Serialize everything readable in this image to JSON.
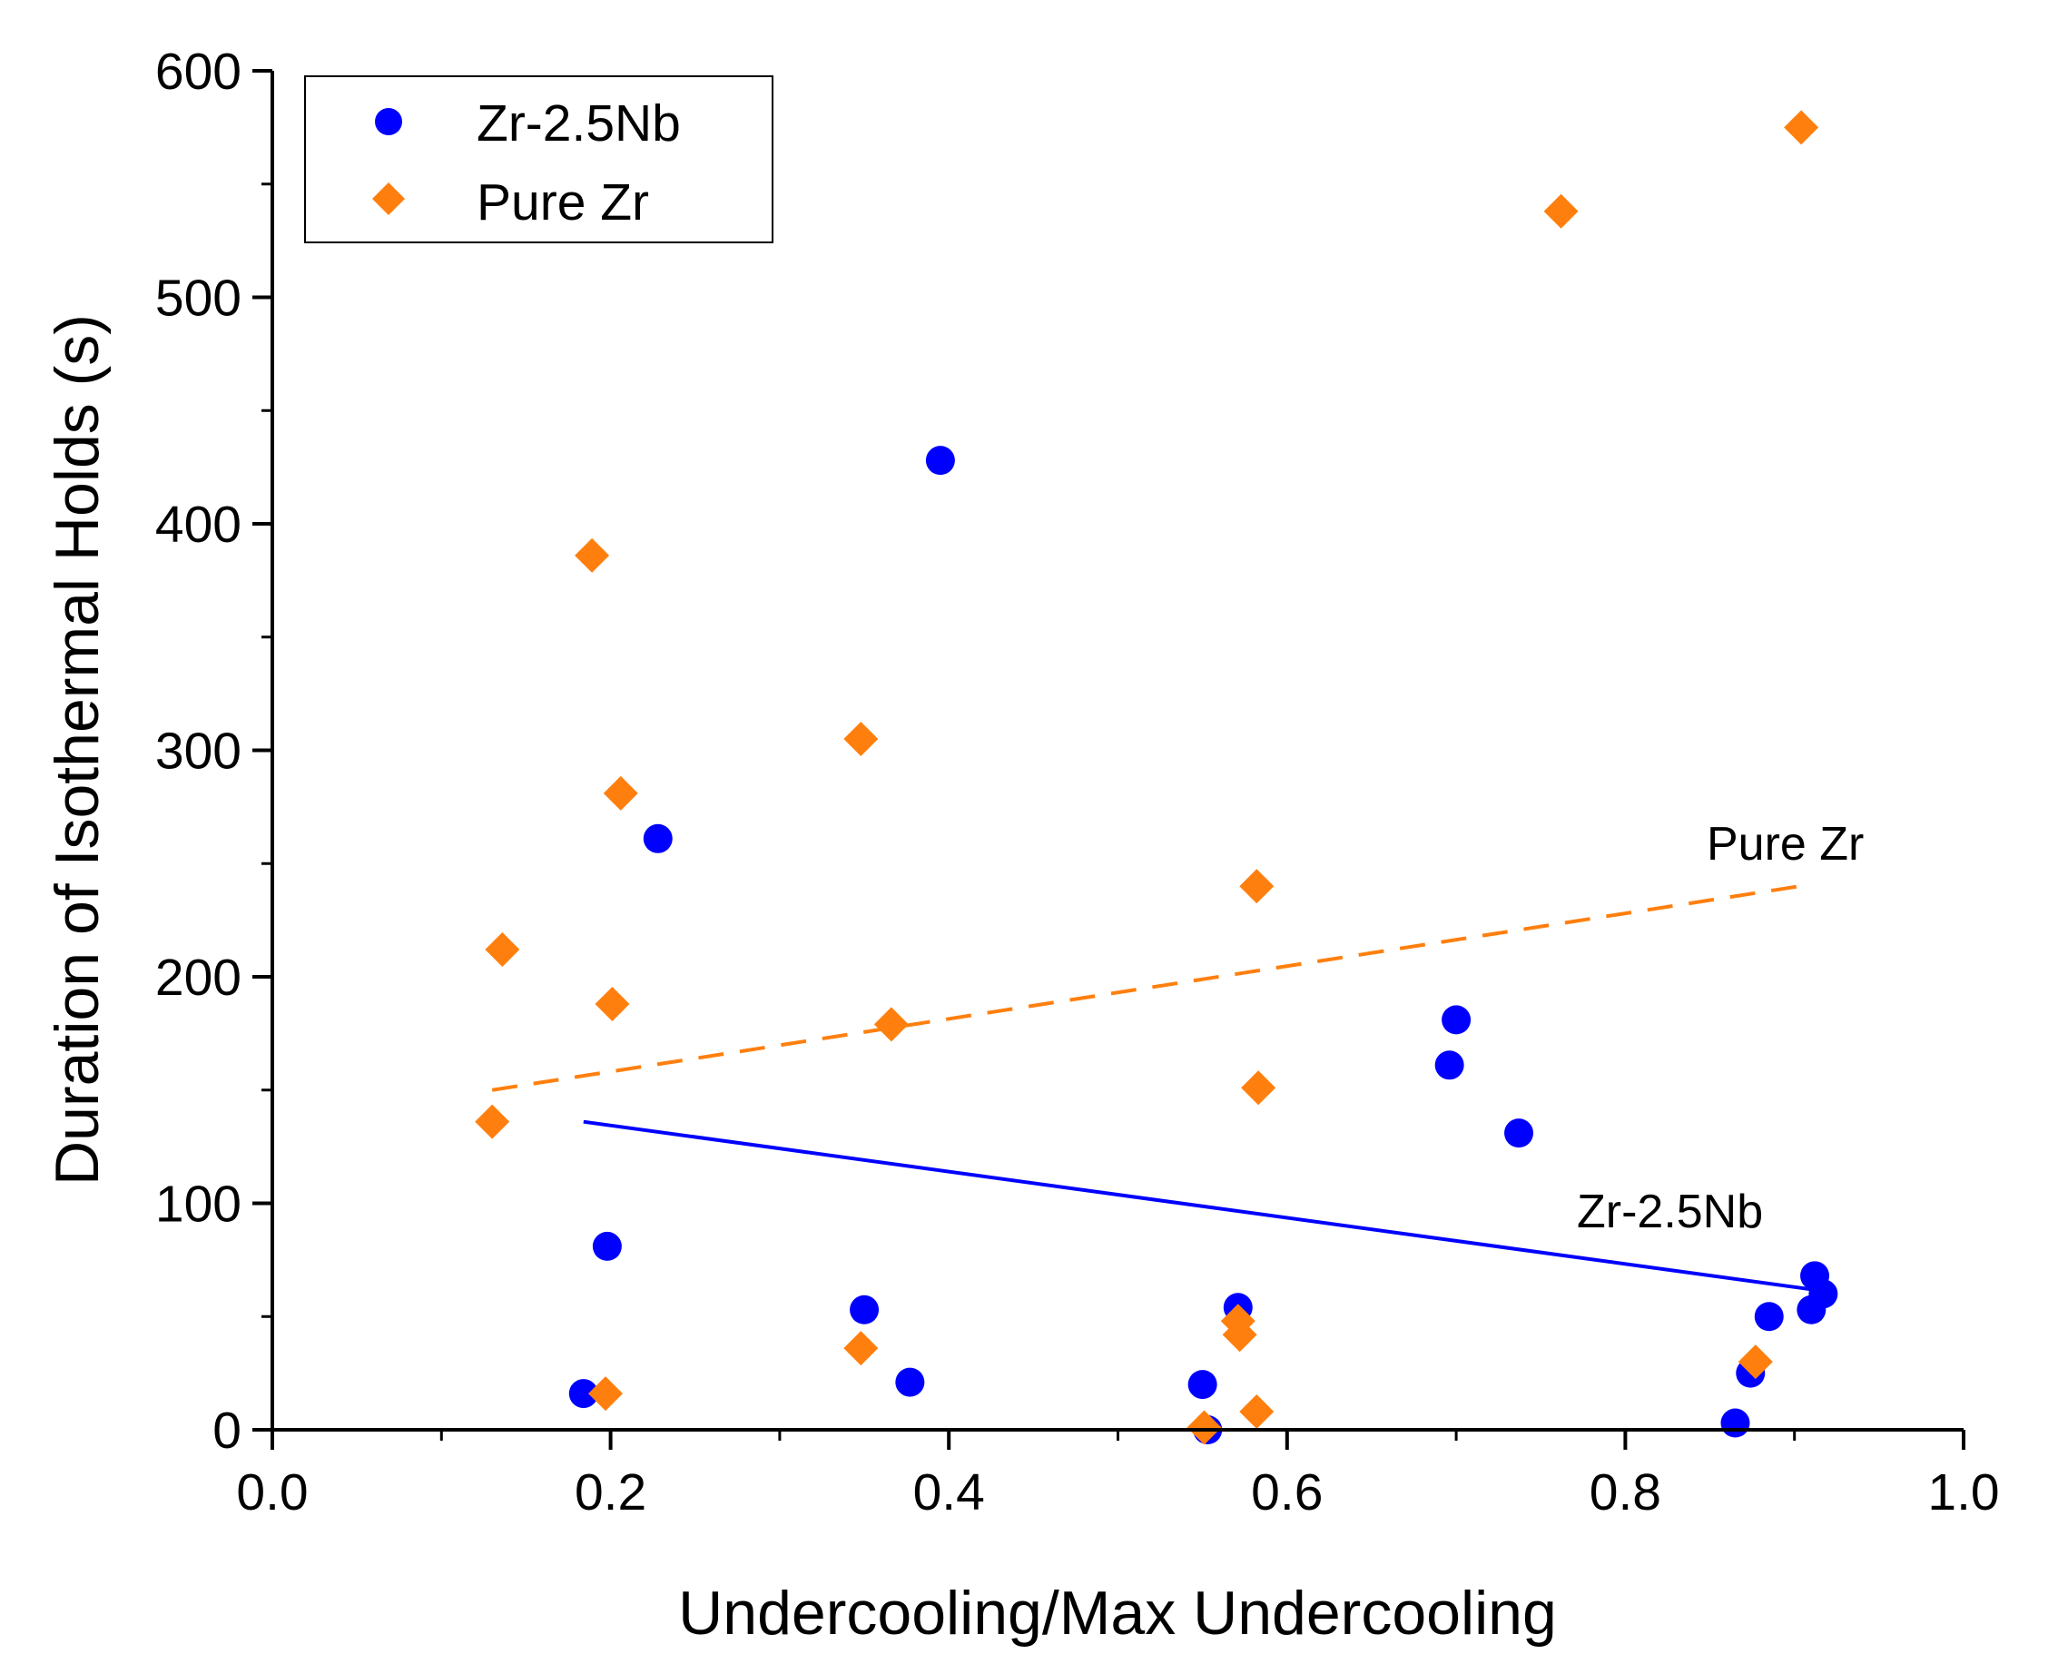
{
  "chart_data": {
    "type": "scatter",
    "title": "",
    "xlabel": "Undercooling/Max Undercooling",
    "ylabel": "Duration of Isothermal Holds (s)",
    "xlim": [
      0.0,
      1.0
    ],
    "ylim": [
      0,
      600
    ],
    "x_ticks": [
      "0.0",
      "0.2",
      "0.4",
      "0.6",
      "0.8",
      "1.0"
    ],
    "y_ticks": [
      "0",
      "100",
      "200",
      "300",
      "400",
      "500",
      "600"
    ],
    "grid": false,
    "legend_position": "top-left",
    "series": [
      {
        "name": "Zr-2.5Nb",
        "marker": "circle",
        "color": "#0000ff",
        "points": [
          [
            0.184,
            16
          ],
          [
            0.198,
            81
          ],
          [
            0.228,
            261
          ],
          [
            0.35,
            53
          ],
          [
            0.377,
            21
          ],
          [
            0.395,
            428
          ],
          [
            0.55,
            20
          ],
          [
            0.553,
            0
          ],
          [
            0.571,
            54
          ],
          [
            0.696,
            161
          ],
          [
            0.7,
            181
          ],
          [
            0.737,
            131
          ],
          [
            0.865,
            3
          ],
          [
            0.874,
            25
          ],
          [
            0.885,
            50
          ],
          [
            0.91,
            53
          ],
          [
            0.912,
            68
          ],
          [
            0.917,
            60
          ]
        ]
      },
      {
        "name": "Pure Zr",
        "marker": "diamond",
        "color": "#ff7f0e",
        "points": [
          [
            0.13,
            136
          ],
          [
            0.136,
            212
          ],
          [
            0.189,
            386
          ],
          [
            0.197,
            16
          ],
          [
            0.201,
            188
          ],
          [
            0.206,
            281
          ],
          [
            0.348,
            305
          ],
          [
            0.348,
            36
          ],
          [
            0.366,
            179
          ],
          [
            0.551,
            1
          ],
          [
            0.571,
            48
          ],
          [
            0.572,
            42
          ],
          [
            0.582,
            240
          ],
          [
            0.583,
            151
          ],
          [
            0.582,
            8
          ],
          [
            0.762,
            538
          ],
          [
            0.877,
            30
          ],
          [
            0.904,
            575
          ]
        ]
      }
    ],
    "fit_lines": [
      {
        "name": "Pure Zr",
        "label": "Pure Zr",
        "style": "dashed",
        "color": "#ff7f0e",
        "x": [
          0.13,
          0.903
        ],
        "y": [
          150,
          240
        ]
      },
      {
        "name": "Zr-2.5Nb",
        "label": "Zr-2.5Nb",
        "style": "solid",
        "color": "#0000ff",
        "x": [
          0.184,
          0.91
        ],
        "y": [
          136,
          62
        ]
      }
    ]
  }
}
